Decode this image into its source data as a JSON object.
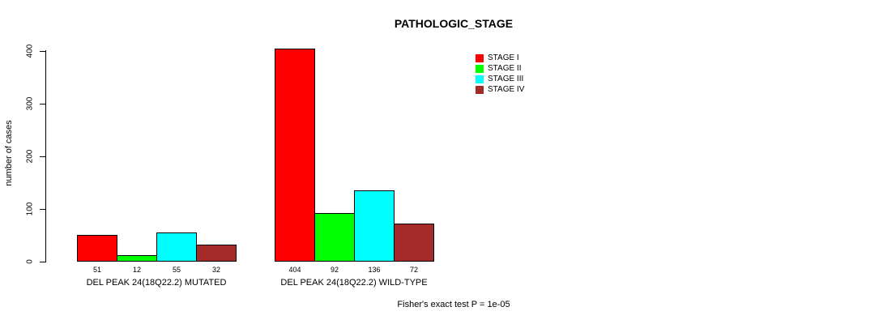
{
  "chart_data": {
    "type": "bar",
    "title": "PATHOLOGIC_STAGE",
    "xlabel": "",
    "ylabel": "number of cases",
    "categories": [
      "DEL PEAK 24(18Q22.2) MUTATED",
      "DEL PEAK 24(18Q22.2) WILD-TYPE"
    ],
    "series": [
      {
        "name": "STAGE I",
        "color": "#FF0000",
        "values": [
          51,
          404
        ]
      },
      {
        "name": "STAGE II",
        "color": "#00FF00",
        "values": [
          12,
          92
        ]
      },
      {
        "name": "STAGE III",
        "color": "#00FFFF",
        "values": [
          55,
          136
        ]
      },
      {
        "name": "STAGE IV",
        "color": "#A52A2A",
        "values": [
          32,
          72
        ]
      }
    ],
    "value_labels": [
      [
        51,
        12,
        55,
        32
      ],
      [
        404,
        92,
        136,
        72
      ]
    ],
    "yticks": [
      0,
      100,
      200,
      300,
      400
    ],
    "ylim": [
      0,
      400
    ],
    "grid": false,
    "legend_position": "top-right",
    "bar_border_color": "#000000",
    "background_color": "#FFFFFF",
    "annotation": "Fisher's exact test P = 1e-05"
  }
}
